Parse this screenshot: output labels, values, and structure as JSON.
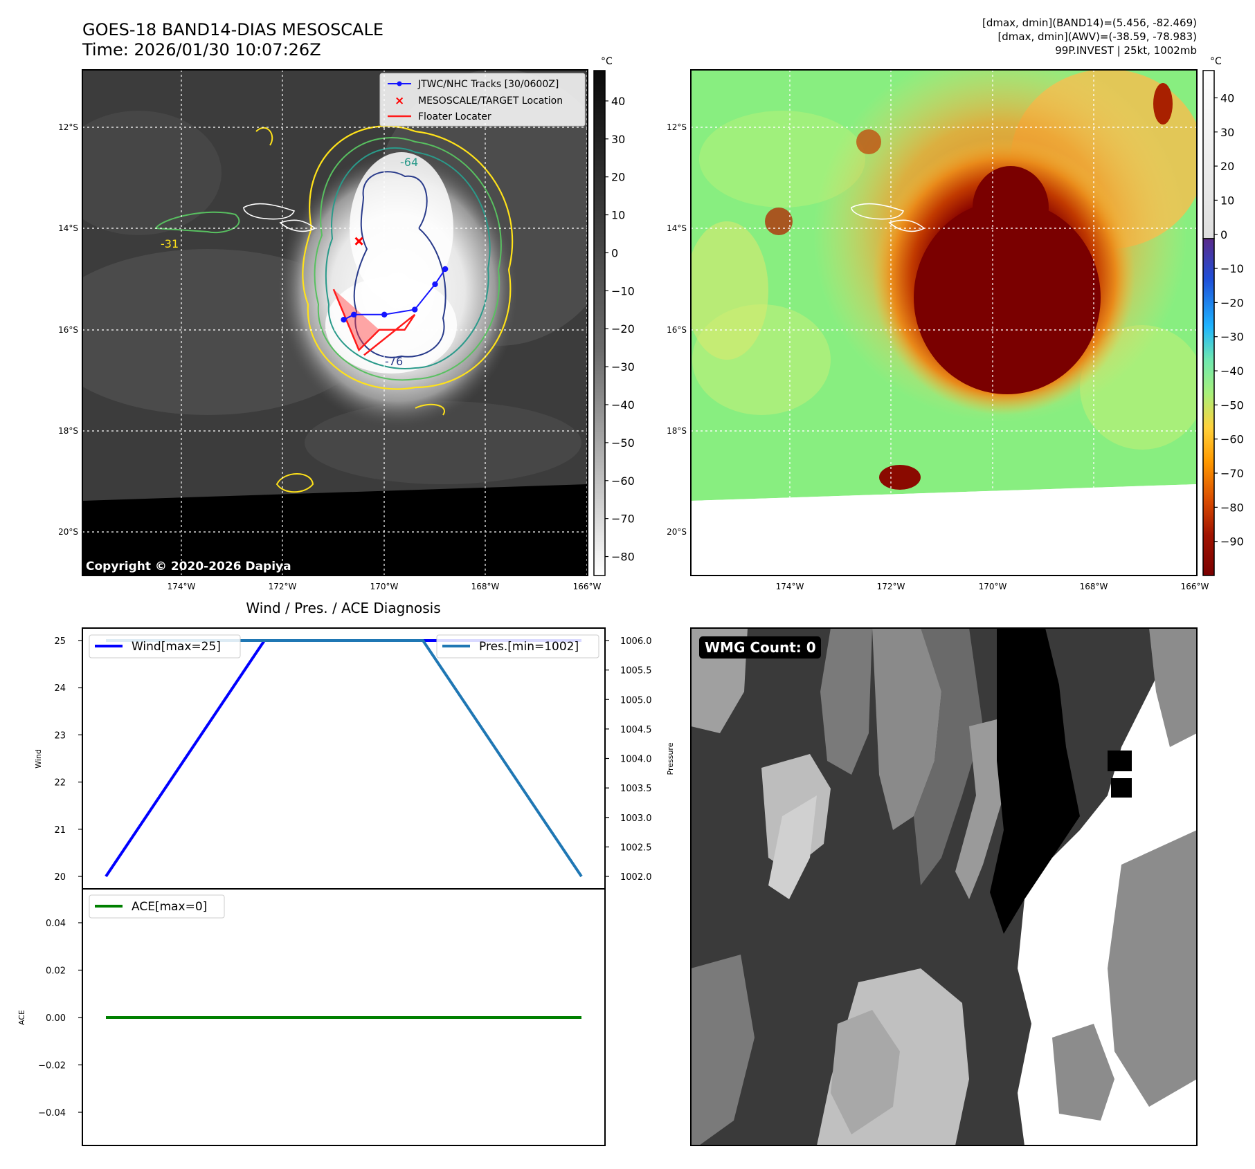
{
  "header": {
    "title": "GOES-18 BAND14-DIAS MESOSCALE",
    "time": "Time: 2026/01/30 10:07:26Z",
    "info_line1": "[dmax, dmin](BAND14)=(5.456, -82.469)",
    "info_line2": "[dmax, dmin](AWV)=(-38.59, -78.983)",
    "info_line3": "99P.INVEST | 25kt, 1002mb"
  },
  "map": {
    "lat_labels": [
      "12°S",
      "14°S",
      "16°S",
      "18°S",
      "20°S"
    ],
    "lon_labels": [
      "174°W",
      "172°W",
      "170°W",
      "168°W",
      "166°W"
    ],
    "copyright": "Copyright © 2020-2026 Dapiya",
    "legend": {
      "tracks": "JTWC/NHC Tracks [30/0600Z]",
      "target": "MESOSCALE/TARGET Location",
      "floater": "Floater Locater"
    },
    "contour_labels": [
      "-31",
      "-64",
      "-76"
    ]
  },
  "colorbars": {
    "unit": "°C",
    "left_ticks": [
      "40",
      "30",
      "20",
      "10",
      "0",
      "−10",
      "−20",
      "−30",
      "−40",
      "−50",
      "−60",
      "−70",
      "−80"
    ],
    "right_ticks": [
      "40",
      "30",
      "20",
      "10",
      "0",
      "−10",
      "−20",
      "−30",
      "−40",
      "−50",
      "−60",
      "−70",
      "−80",
      "−90"
    ]
  },
  "diag": {
    "title": "Wind / Pres. / ACE Diagnosis",
    "wind_label": "Wind",
    "pressure_label": "Pressure",
    "ace_label": "ACE",
    "wind_legend": "Wind[max=25]",
    "pres_legend": "Pres.[min=1002]",
    "ace_legend": "ACE[max=0]",
    "wind_ticks": [
      "25",
      "24",
      "23",
      "22",
      "21",
      "20"
    ],
    "pres_ticks": [
      "1006.0",
      "1005.5",
      "1005.0",
      "1004.5",
      "1004.0",
      "1003.5",
      "1003.0",
      "1002.5",
      "1002.0"
    ],
    "ace_ticks": [
      "0.04",
      "0.02",
      "0.00",
      "−0.02",
      "−0.04"
    ]
  },
  "wmg": {
    "label": "WMG Count: 0"
  },
  "chart_data": [
    {
      "type": "image",
      "title": "GOES-18 BAND14-DIAS MESOSCALE",
      "subtitle": "Time: 2026/01/30 10:07:26Z",
      "colorbar_range": [
        -85,
        48
      ],
      "colorbar_unit": "°C",
      "track": {
        "name": "JTWC/NHC Tracks [30/0600Z]",
        "lon": [
          -170.8,
          -170.6,
          -170.0,
          -169.4,
          -169.0,
          -168.8
        ],
        "lat": [
          -15.8,
          -15.7,
          -15.7,
          -15.6,
          -15.1,
          -14.8
        ]
      },
      "target": {
        "name": "MESOSCALE/TARGET Location",
        "lon": -170.5,
        "lat": -14.25
      },
      "floater": {
        "name": "Floater Locater",
        "lon": [
          -171.0,
          -170.5,
          -170.1,
          -169.6,
          -169.4,
          -170.4
        ],
        "lat": [
          -15.2,
          -16.4,
          -16.0,
          -16.0,
          -15.7,
          -16.5
        ]
      }
    },
    {
      "type": "image",
      "title": "AWV",
      "colorbar_range": [
        -100,
        48
      ],
      "colorbar_unit": "°C",
      "info": [
        "[dmax, dmin](BAND14)=(5.456, -82.469)",
        "[dmax, dmin](AWV)=(-38.59, -78.983)",
        "99P.INVEST | 25kt, 1002mb"
      ]
    },
    {
      "type": "line",
      "title": "Wind / Pres. / ACE Diagnosis",
      "x": [
        0,
        1,
        2,
        3
      ],
      "series": [
        {
          "name": "Wind[max=25]",
          "axis": "Wind",
          "values": [
            20,
            25,
            25,
            25
          ],
          "color": "#0000ff"
        },
        {
          "name": "Pres.[min=1002]",
          "axis": "Pressure",
          "values": [
            1006,
            1006,
            1006,
            1002
          ],
          "color": "#1f77b4"
        }
      ],
      "ylim_wind": [
        19.75,
        25.25
      ],
      "ylim_pressure": [
        1001.8,
        1006.2
      ]
    },
    {
      "type": "line",
      "x": [
        0,
        3
      ],
      "series": [
        {
          "name": "ACE[max=0]",
          "axis": "ACE",
          "values": [
            0,
            0
          ],
          "color": "#008000"
        }
      ],
      "ylim": [
        -0.055,
        0.055
      ]
    },
    {
      "type": "heatmap",
      "label": "WMG Count: 0"
    }
  ]
}
